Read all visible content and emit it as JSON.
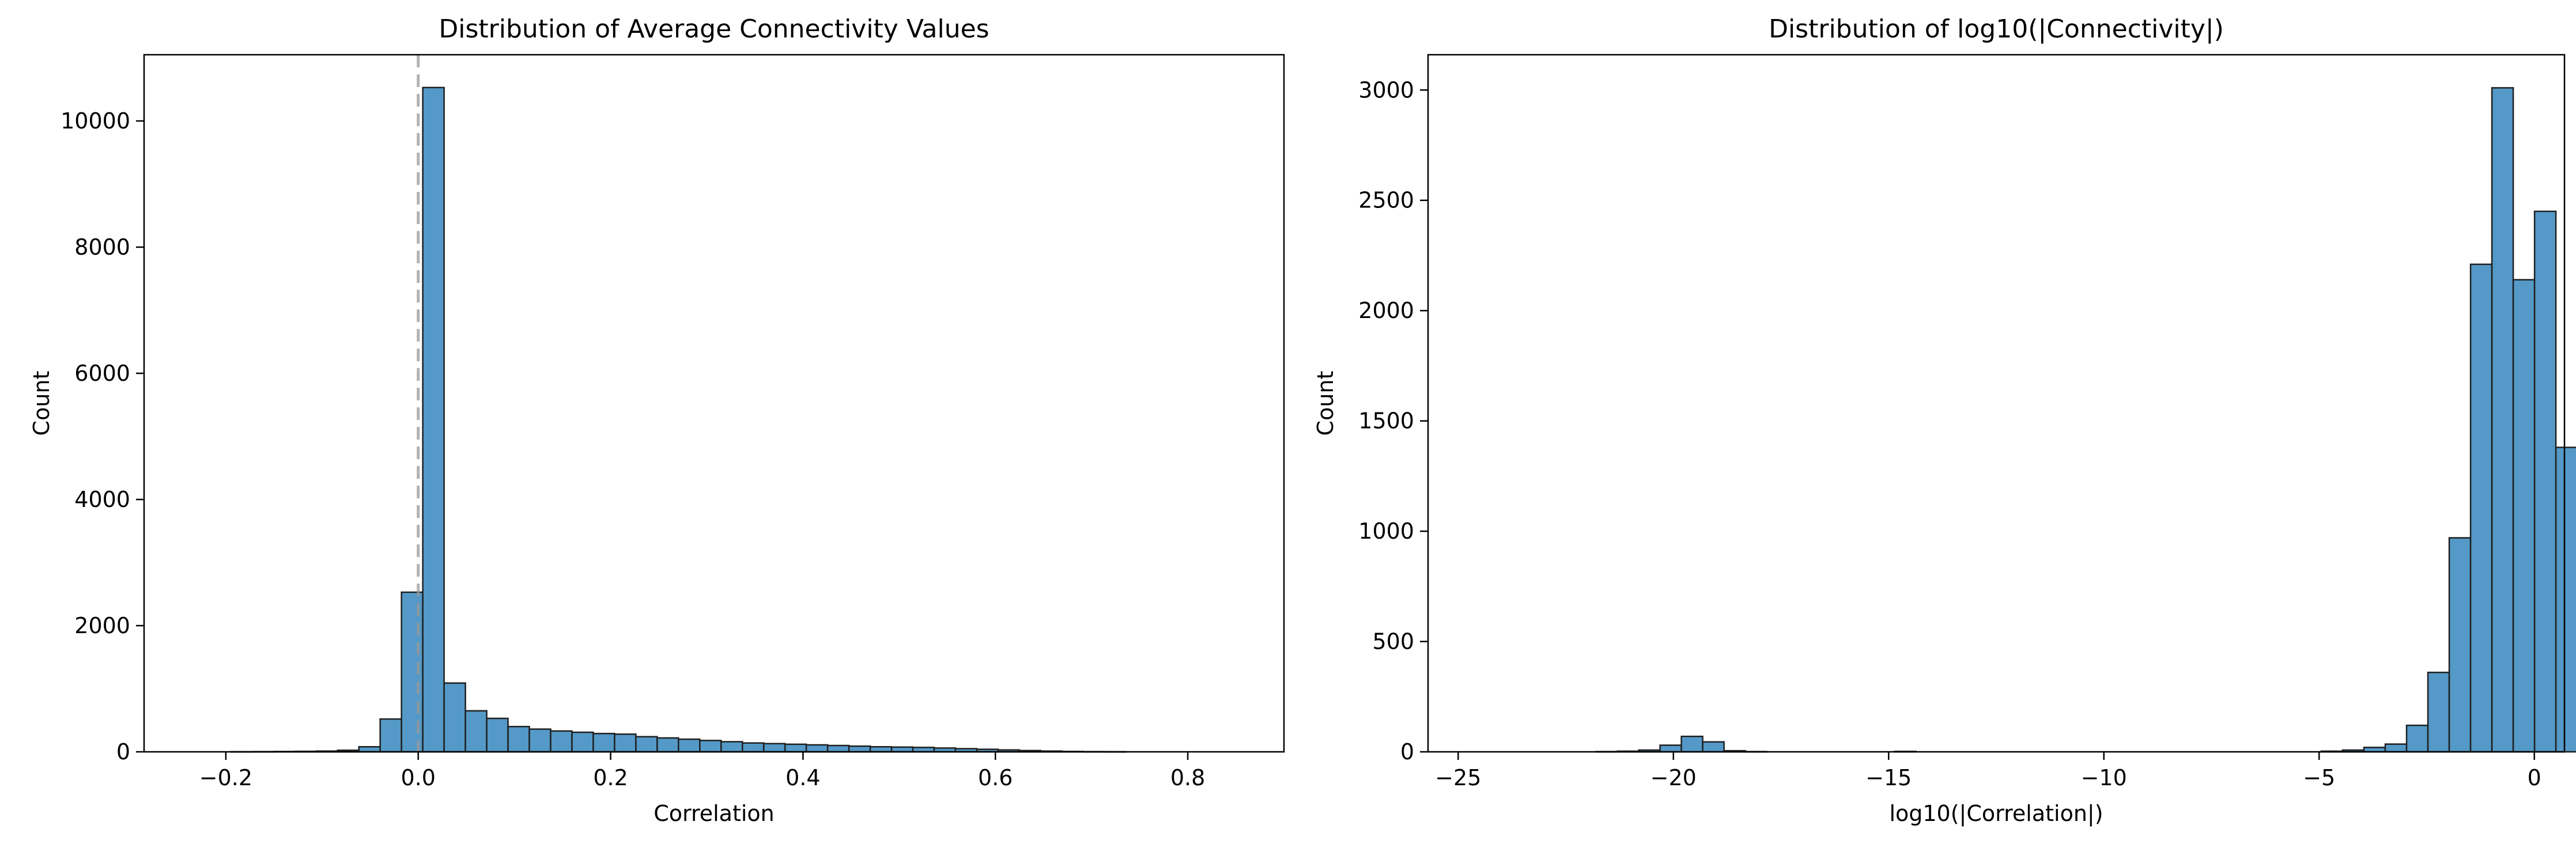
{
  "chart_data": [
    {
      "type": "bar",
      "title": "Distribution of Average Connectivity Values",
      "xlabel": "Correlation",
      "ylabel": "Count",
      "xlim": [
        -0.285,
        0.9
      ],
      "ylim": [
        0,
        11050
      ],
      "xticks": [
        -0.2,
        0.0,
        0.2,
        0.4,
        0.6,
        0.8
      ],
      "xtick_labels": [
        "−0.2",
        "0.0",
        "0.2",
        "0.4",
        "0.6",
        "0.8"
      ],
      "yticks": [
        0,
        2000,
        4000,
        6000,
        8000,
        10000
      ],
      "ytick_labels": [
        "0",
        "2000",
        "4000",
        "6000",
        "8000",
        "10000"
      ],
      "grid": false,
      "reference_line": {
        "x": 0,
        "style": "dashed"
      },
      "bin_width": 0.02215,
      "bin_start": -0.1946,
      "values": [
        2,
        3,
        5,
        8,
        12,
        25,
        80,
        520,
        2530,
        10530,
        1090,
        650,
        530,
        400,
        360,
        330,
        310,
        290,
        280,
        240,
        220,
        200,
        180,
        160,
        140,
        130,
        120,
        110,
        100,
        90,
        80,
        75,
        70,
        60,
        50,
        40,
        30,
        20,
        12,
        6,
        3,
        2
      ]
    },
    {
      "type": "bar",
      "title": "Distribution of log10(|Connectivity|)",
      "xlabel": "log10(|Correlation|)",
      "ylabel": "Count",
      "xlim": [
        -25.7,
        0.7
      ],
      "ylim": [
        0,
        3160
      ],
      "xticks": [
        -25,
        -20,
        -15,
        -10,
        -5,
        0
      ],
      "xtick_labels": [
        "−25",
        "−20",
        "−15",
        "−10",
        "−5",
        "0"
      ],
      "yticks": [
        0,
        500,
        1000,
        1500,
        2000,
        2500,
        3000
      ],
      "ytick_labels": [
        "0",
        "500",
        "1000",
        "1500",
        "2000",
        "2500",
        "3000"
      ],
      "grid": false,
      "bin_width": 0.4955,
      "bin_start": -24.77,
      "values": [
        0,
        0,
        0,
        0,
        0,
        0,
        1,
        3,
        8,
        30,
        70,
        45,
        5,
        1,
        0,
        0,
        0,
        0,
        0,
        0,
        2,
        0,
        0,
        0,
        0,
        0,
        0,
        0,
        0,
        0,
        0,
        0,
        0,
        0,
        0,
        0,
        0,
        0,
        0,
        0,
        3,
        8,
        20,
        35,
        120,
        360,
        970,
        2210,
        3010,
        2140,
        2450,
        1380
      ]
    }
  ]
}
